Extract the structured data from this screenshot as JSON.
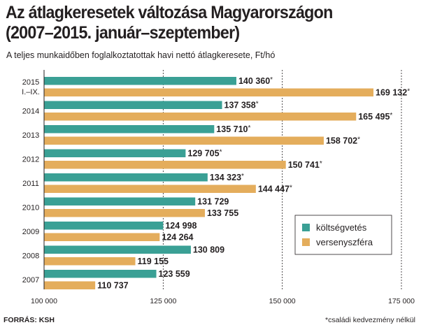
{
  "header": {
    "title_line1": "Az átlagkeresetek változása Magyarországon",
    "title_line2": "(2007–2015. január–szeptember)",
    "subtitle": "A teljes munkaidőben foglalkoztatottak havi nettó átlagkeresete, Ft/hó"
  },
  "footer": {
    "source": "FORRÁS: KSH",
    "note": "*családi kedvezmény nélkül"
  },
  "chart_data": {
    "type": "bar",
    "orientation": "horizontal",
    "categories": [
      "2015 I.–IX.",
      "2014",
      "2013",
      "2012",
      "2011",
      "2010",
      "2009",
      "2008",
      "2007"
    ],
    "category_labels": [
      [
        "2015",
        "I.–IX."
      ],
      [
        "2014"
      ],
      [
        "2013"
      ],
      [
        "2012"
      ],
      [
        "2011"
      ],
      [
        "2010"
      ],
      [
        "2009"
      ],
      [
        "2008"
      ],
      [
        "2007"
      ]
    ],
    "series": [
      {
        "name": "költségvetés",
        "color": "#3aa095",
        "values": [
          140360,
          137358,
          135710,
          129705,
          134323,
          131729,
          124998,
          130809,
          123559
        ],
        "labels": [
          "140 360*",
          "137 358*",
          "135 710*",
          "129 705*",
          "134 323*",
          "131 729",
          "124 998",
          "130 809",
          "123 559"
        ]
      },
      {
        "name": "versenyszféra",
        "color": "#e4ad5c",
        "values": [
          169132,
          165495,
          158702,
          150741,
          144447,
          133755,
          124264,
          119155,
          110737
        ],
        "labels": [
          "169 132*",
          "165 495*",
          "158 702*",
          "150 741*",
          "144 447*",
          "133 755",
          "124 264",
          "119 155",
          "110 737"
        ]
      }
    ],
    "xlim": [
      100000,
      175000
    ],
    "xticks": [
      100000,
      125000,
      150000,
      175000
    ],
    "xtick_labels": [
      "100 000",
      "125 000",
      "150 000",
      "175 000"
    ],
    "grid": "vertical dashed",
    "legend": "bottom-right"
  }
}
